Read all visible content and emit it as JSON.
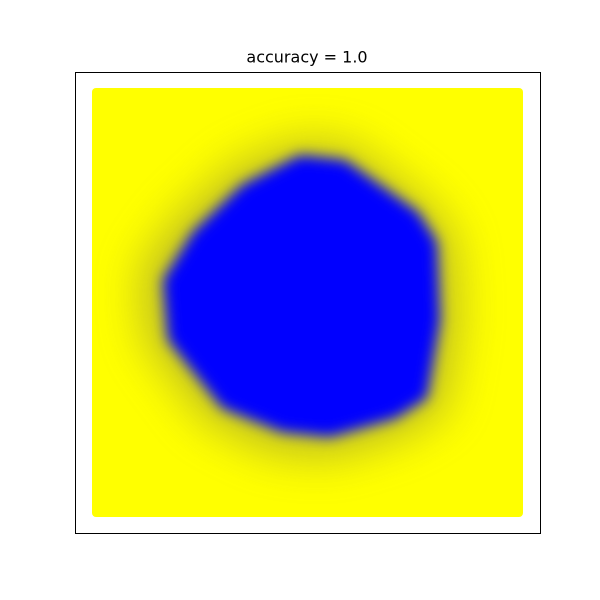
{
  "chart_data": {
    "type": "decision-map",
    "title": "accuracy = 1.0"
  }
}
